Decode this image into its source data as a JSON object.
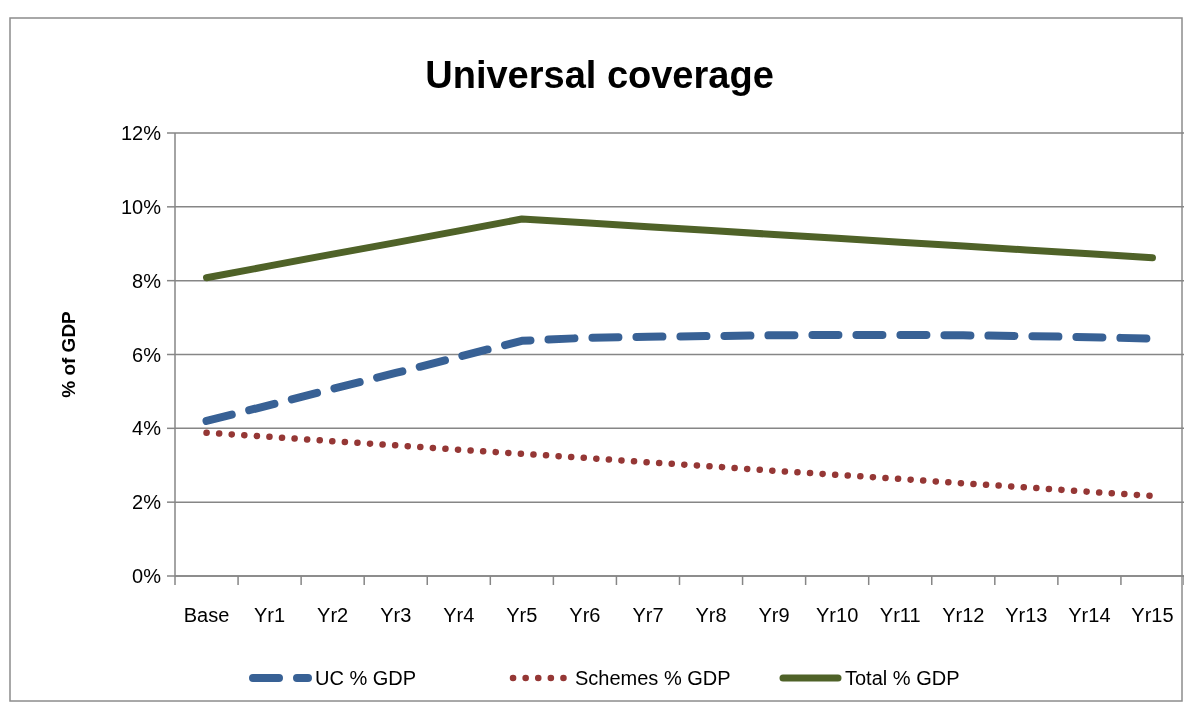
{
  "chart_data": {
    "type": "line",
    "title": "Universal coverage",
    "ylabel": "% of GDP",
    "categories": [
      "Base",
      "Yr1",
      "Yr2",
      "Yr3",
      "Yr4",
      "Yr5",
      "Yr6",
      "Yr7",
      "Yr8",
      "Yr9",
      "Yr10",
      "Yr11",
      "Yr12",
      "Yr13",
      "Yr14",
      "Yr15"
    ],
    "series": [
      {
        "name": "UC % GDP",
        "color": "#386195",
        "line_style": "dashed",
        "values": [
          4.2,
          4.63,
          5.07,
          5.5,
          5.94,
          6.37,
          6.45,
          6.48,
          6.5,
          6.52,
          6.53,
          6.53,
          6.52,
          6.5,
          6.47,
          6.43
        ]
      },
      {
        "name": "Schemes % GDP",
        "color": "#953735",
        "line_style": "dotted",
        "values": [
          3.88,
          3.77,
          3.65,
          3.54,
          3.42,
          3.31,
          3.2,
          3.08,
          2.97,
          2.85,
          2.74,
          2.63,
          2.51,
          2.4,
          2.28,
          2.17
        ]
      },
      {
        "name": "Total % GDP",
        "color": "#4f6228",
        "line_style": "solid",
        "values": [
          8.08,
          8.4,
          8.72,
          9.03,
          9.35,
          9.67,
          9.57,
          9.46,
          9.36,
          9.25,
          9.15,
          9.04,
          8.94,
          8.83,
          8.73,
          8.62
        ]
      }
    ],
    "ylim": [
      0,
      12
    ],
    "yticks": [
      {
        "value": 0,
        "label": "0%"
      },
      {
        "value": 2,
        "label": "2%"
      },
      {
        "value": 4,
        "label": "4%"
      },
      {
        "value": 6,
        "label": "6%"
      },
      {
        "value": 8,
        "label": "8%"
      },
      {
        "value": 10,
        "label": "10%"
      },
      {
        "value": 12,
        "label": "12%"
      }
    ],
    "grid": "y",
    "legend": "bottom",
    "marker": "none"
  }
}
